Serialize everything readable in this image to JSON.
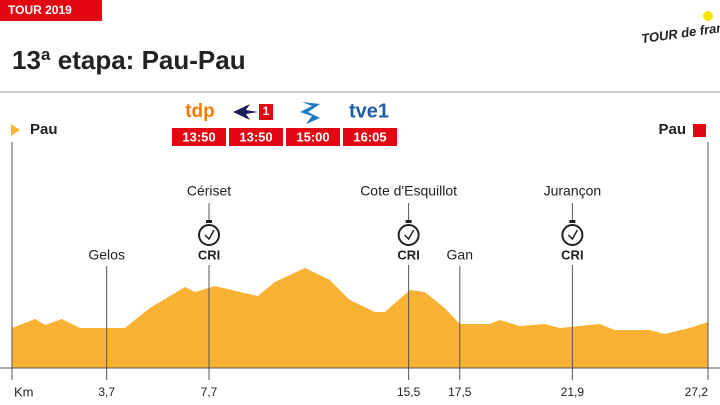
{
  "header": {
    "tag": "TOUR 2019",
    "logo": "TOUR de france"
  },
  "broadcasters": [
    {
      "name": "tdp",
      "time": "13:50"
    },
    {
      "time": "13:50"
    },
    {
      "time": "15:00"
    },
    {
      "name": "tve1",
      "time": "16:05"
    }
  ],
  "chart_data": {
    "type": "area",
    "title": "13ª etapa: Pau-Pau",
    "start": "Pau",
    "finish": "Pau",
    "x_label": "Km",
    "x": [
      0,
      0.9,
      1.3,
      1.95,
      2.66,
      4.41,
      5.39,
      6.76,
      7.15,
      7.93,
      8.91,
      9.61,
      10.27,
      11.45,
      12.42,
      13.2,
      14.18,
      14.57,
      15.55,
      16.13,
      16.91,
      17.5,
      18.67,
      19.06,
      19.84,
      20.82,
      21.41,
      22.19,
      22.97,
      23.55,
      24.92,
      25.51,
      26.48,
      27.2
    ],
    "values": [
      40,
      49,
      43,
      49,
      40,
      40,
      60,
      81,
      76,
      82,
      76,
      72,
      86,
      100,
      88,
      68,
      56,
      56,
      78,
      76,
      60,
      44,
      44,
      48,
      42,
      44,
      40,
      42,
      44,
      38,
      38,
      34,
      40,
      46
    ],
    "color": "#f9b233",
    "xlim": [
      0,
      27.2
    ],
    "ylim": [
      0,
      120
    ],
    "xticks": [
      {
        "value": 3.7,
        "label": "3,7"
      },
      {
        "value": 7.7,
        "label": "7,7"
      },
      {
        "value": 15.5,
        "label": "15,5"
      },
      {
        "value": 17.5,
        "label": "17,5"
      },
      {
        "value": 21.9,
        "label": "21,9"
      },
      {
        "value": 27.2,
        "label": "27,2"
      }
    ],
    "markers": [
      {
        "label": "Gelos"
      },
      {
        "label": "Cériset",
        "timing": "CRI"
      },
      {
        "label": "Cote d'Esquillot",
        "timing": "CRI"
      },
      {
        "label": "Gan"
      },
      {
        "label": "Jurançon",
        "timing": "CRI"
      }
    ]
  }
}
